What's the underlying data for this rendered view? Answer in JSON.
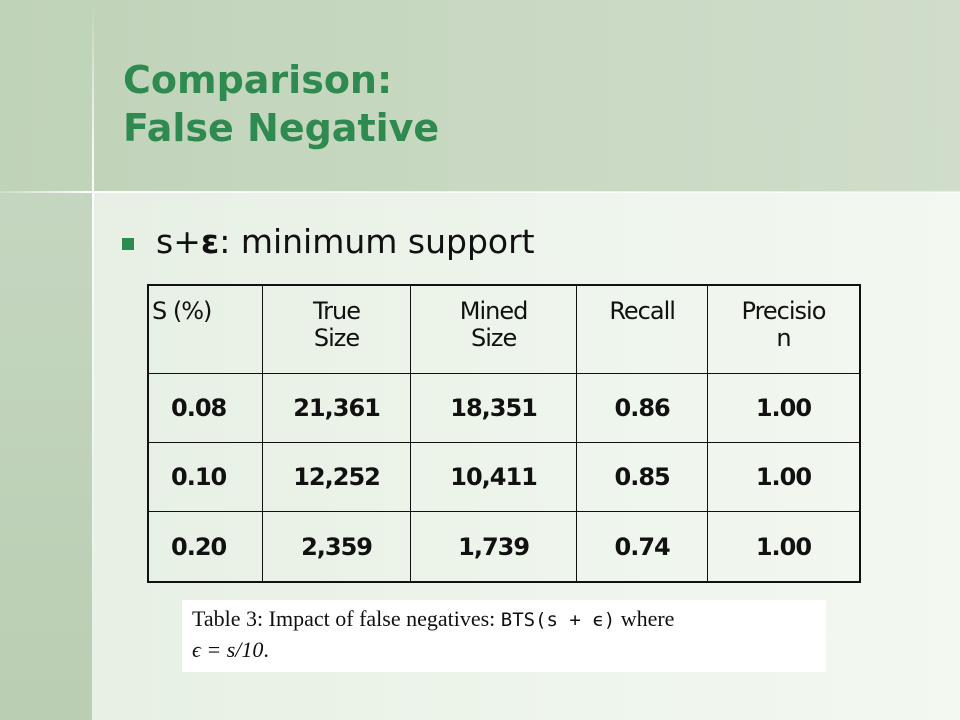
{
  "slide": {
    "title_line1": "Comparison:",
    "title_line2": "False Negative",
    "bullet_prefix": "s+",
    "bullet_epsilon": "ε",
    "bullet_rest": ": minimum support",
    "colors": {
      "title": "#2f8a50",
      "bullet": "#2f8a50",
      "background": "#e6efe3",
      "band": "#c3d6bd"
    }
  },
  "table": {
    "headers": [
      "S (%)",
      "True Size",
      "Mined Size",
      "Recall",
      "Precision"
    ],
    "header_lines": [
      [
        "S (%)"
      ],
      [
        "True",
        "Size"
      ],
      [
        "Mined",
        "Size"
      ],
      [
        "Recall"
      ],
      [
        "Precisio",
        "n"
      ]
    ],
    "rows": [
      [
        "0.08",
        "21,361",
        "18,351",
        "0.86",
        "1.00"
      ],
      [
        "0.10",
        "12,252",
        "10,411",
        "0.85",
        "1.00"
      ],
      [
        "0.20",
        "2,359",
        "1,739",
        "0.74",
        "1.00"
      ]
    ]
  },
  "caption": {
    "lead": "Table 3: Impact of false negatives: ",
    "code": "BTS(s + ϵ)",
    "mid": " where",
    "math": "ϵ = s/10",
    "end": "."
  }
}
